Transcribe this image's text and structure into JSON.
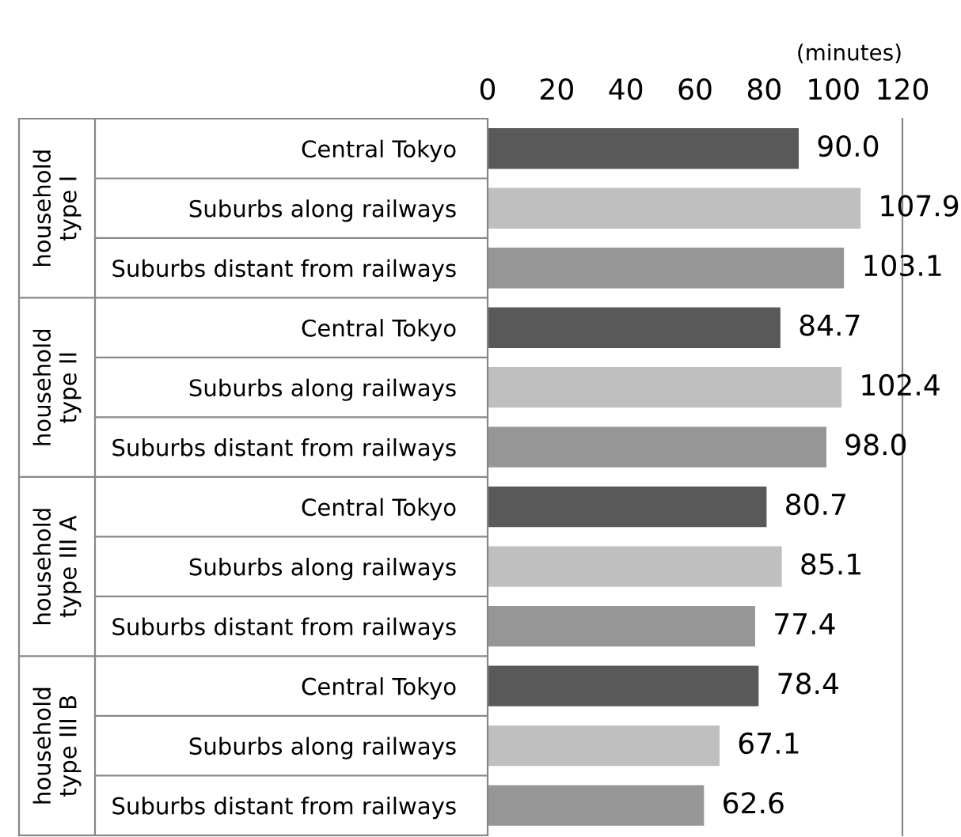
{
  "chart_data": {
    "type": "bar",
    "orientation": "horizontal",
    "xlabel": "(minutes)",
    "categories": [
      "Central Tokyo",
      "Suburbs along railways",
      "Suburbs distant from railways",
      "Central Tokyo",
      "Suburbs along railways",
      "Suburbs distant from railways",
      "Central Tokyo",
      "Suburbs along railways",
      "Suburbs distant from railways",
      "Central Tokyo",
      "Suburbs along railways",
      "Suburbs distant from railways"
    ],
    "values": [
      90.0,
      107.9,
      103.1,
      84.7,
      102.4,
      98.0,
      80.7,
      85.1,
      77.4,
      78.4,
      67.1,
      62.6
    ],
    "value_labels": [
      "90.0",
      "107.9",
      "103.1",
      "84.7",
      "102.4",
      "98.0",
      "80.7",
      "85.1",
      "77.4",
      "78.4",
      "67.1",
      "62.6"
    ],
    "colors": [
      "#595959",
      "#bfbfbf",
      "#969696",
      "#595959",
      "#bfbfbf",
      "#969696",
      "#595959",
      "#bfbfbf",
      "#969696",
      "#595959",
      "#bfbfbf",
      "#969696"
    ],
    "xlim": [
      0,
      120
    ],
    "xticks": [
      0,
      20,
      40,
      60,
      80,
      100,
      120
    ],
    "annotations": [
      "household type I",
      "household type II",
      "household type III A",
      "household type III B"
    ],
    "grid": false,
    "legend": false
  }
}
